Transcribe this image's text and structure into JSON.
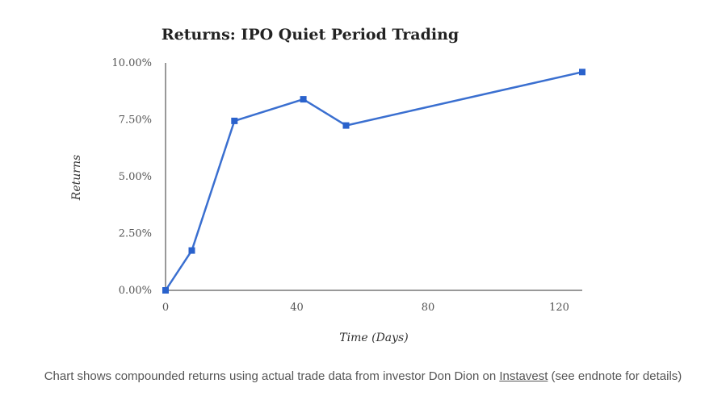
{
  "chart_data": {
    "type": "line",
    "title": "Returns: IPO Quiet Period Trading",
    "xlabel": "Time (Days)",
    "ylabel": "Returns",
    "x_ticks": [
      "0",
      "40",
      "80",
      "120"
    ],
    "y_ticks": [
      "0.00%",
      "2.50%",
      "5.00%",
      "7.50%",
      "10.00%"
    ],
    "xlim": [
      0,
      127
    ],
    "ylim": [
      0,
      10
    ],
    "grid": false,
    "series": [
      {
        "x": [
          0,
          8,
          21,
          42,
          55,
          127
        ],
        "y": [
          0.0,
          1.75,
          7.45,
          8.4,
          7.25,
          9.6
        ]
      }
    ],
    "colors": {
      "line": "#3a6fd0",
      "marker": "#2a62cc",
      "axis": "#333333"
    }
  },
  "caption": {
    "prefix": "Chart shows compounded returns using actual trade data from investor Don Dion on ",
    "link": "Instavest",
    "suffix": " (see endnote for details)"
  }
}
